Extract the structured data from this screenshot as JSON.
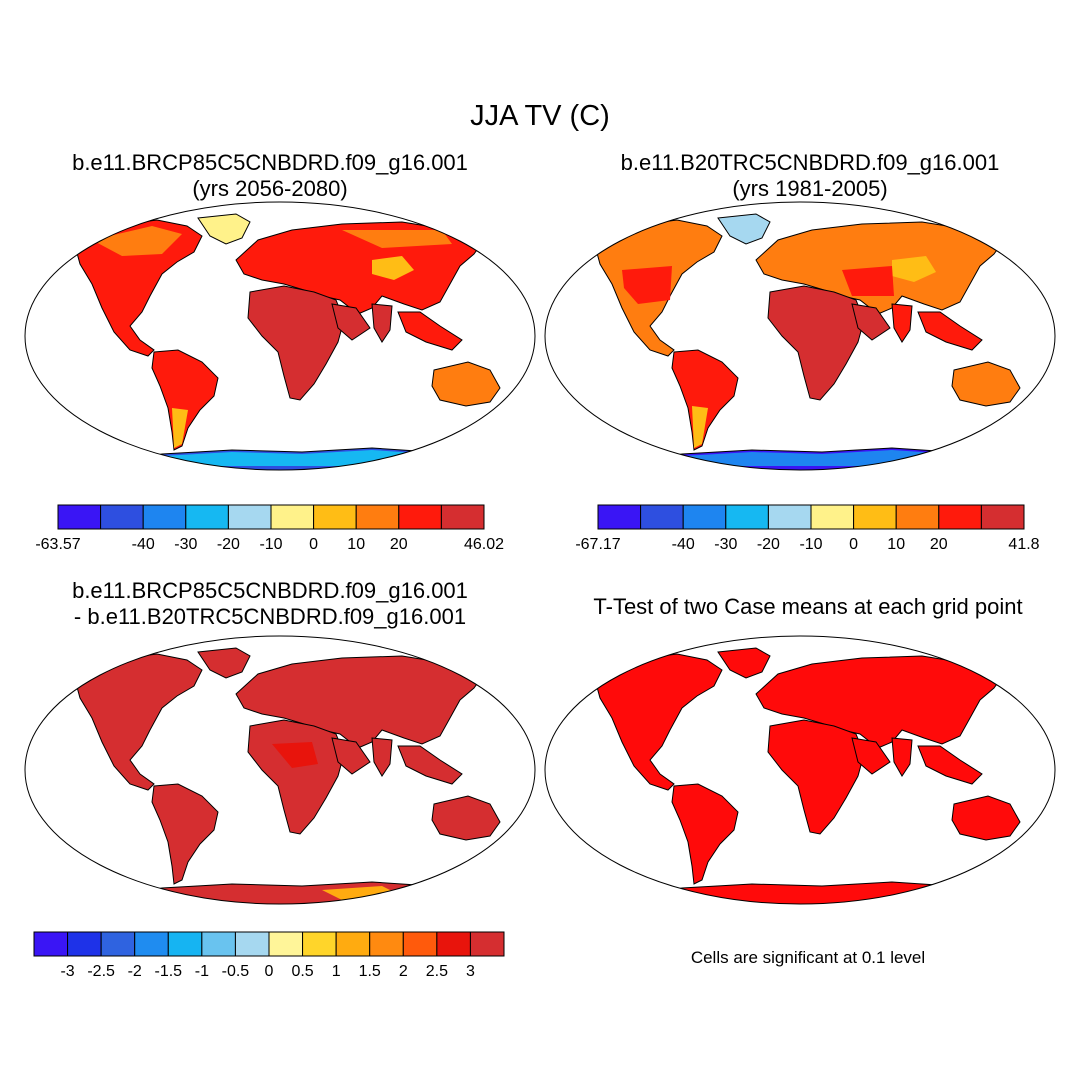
{
  "title": "JJA TV (C)",
  "panels": [
    {
      "id": "case1",
      "title_line1": "b.e11.BRCP85C5CNBDRD.f09_g16.001",
      "title_line2": "(yrs 2056-2080)",
      "colorbar": {
        "colors": [
          "#3a15f5",
          "#2e4fe0",
          "#1e85f0",
          "#16b8f2",
          "#a6d8f0",
          "#fff28a",
          "#ffbd15",
          "#ff7d10",
          "#ff1a0c",
          "#d52e30"
        ],
        "labels": [
          "-63.57",
          "-40",
          "-30",
          "-20",
          "-10",
          "0",
          "10",
          "20",
          "46.02"
        ]
      }
    },
    {
      "id": "case2",
      "title_line1": "b.e11.B20TRC5CNBDRD.f09_g16.001",
      "title_line2": "(yrs 1981-2005)",
      "colorbar": {
        "colors": [
          "#3a15f5",
          "#2e4fe0",
          "#1e85f0",
          "#16b8f2",
          "#a6d8f0",
          "#fff28a",
          "#ffbd15",
          "#ff7d10",
          "#ff1a0c",
          "#d52e30"
        ],
        "labels": [
          "-67.17",
          "-40",
          "-30",
          "-20",
          "-10",
          "0",
          "10",
          "20",
          "41.8"
        ]
      }
    },
    {
      "id": "difference",
      "title_line1": "b.e11.BRCP85C5CNBDRD.f09_g16.001",
      "title_line2": "- b.e11.B20TRC5CNBDRD.f09_g16.001",
      "colorbar": {
        "colors": [
          "#3a15f5",
          "#1e32e8",
          "#2f63e0",
          "#1f8cf0",
          "#16b4f2",
          "#69c3ef",
          "#a6d8f0",
          "#fff599",
          "#ffd52a",
          "#ffab10",
          "#ff8a10",
          "#ff5a0c",
          "#e8140c",
          "#d52e30"
        ],
        "labels": [
          "-3",
          "-2.5",
          "-2",
          "-1.5",
          "-1",
          "-0.5",
          "0",
          "0.5",
          "1",
          "1.5",
          "2",
          "2.5",
          "3"
        ]
      }
    },
    {
      "id": "ttest",
      "title_line1": "T-Test of two Case means at each grid point",
      "note": "Cells are significant at 0.1 level"
    }
  ],
  "colors": {
    "land_warm": "#ff1a0c",
    "land_hot": "#d52e30",
    "land_mid": "#ff7d10",
    "land_cool": "#ffbd15",
    "ice_cold": "#2e4fe0",
    "sig_red": "#ff0a0a",
    "outline": "#000000"
  }
}
